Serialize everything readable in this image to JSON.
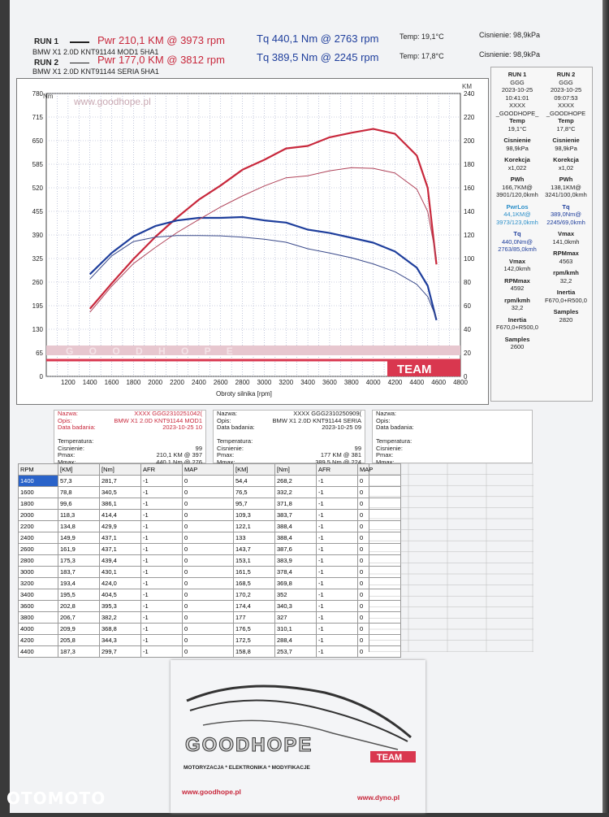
{
  "header": {
    "run1_label": "RUN 1",
    "run1_pwr": "Pwr  210,1 KM @ 3973 rpm",
    "run1_tq": "Tq 440,1 Nm @ 2763 rpm",
    "run1_temp": "Temp: 19,1°C",
    "run1_pressure": "Cisnienie: 98,9kPa",
    "run1_car": "BMW X1 2.0D  KNT91144  MOD1  5HA1",
    "run2_label": "RUN 2",
    "run2_pwr": "Pwr  177,0 KM @ 3812 rpm",
    "run2_tq": "Tq 389,5 Nm @ 2245 rpm",
    "run2_temp": "Temp: 17,8°C",
    "run2_pressure": "Cisnienie: 98,9kPa",
    "run2_car": "BMW X1 2.0D  KNT91144  SERIA  5HA1"
  },
  "chart_data": {
    "type": "line",
    "xlabel": "Obroty silnika [rpm]",
    "ylabel_left": "Nm",
    "ylabel_right": "KM",
    "watermark_url": "www.goodhope.pl",
    "brand_strip": "G O O D H O P E",
    "brand_team": "TEAM",
    "xlim": [
      1000,
      4800
    ],
    "xticks": [
      1200,
      1400,
      1600,
      1800,
      2000,
      2200,
      2400,
      2600,
      2800,
      3000,
      3200,
      3400,
      3600,
      3800,
      4000,
      4200,
      4400,
      4600,
      4800
    ],
    "ylim_left": [
      0,
      780
    ],
    "yticks_left": [
      0,
      65,
      130,
      195,
      260,
      325,
      390,
      455,
      520,
      585,
      650,
      715,
      780
    ],
    "ylim_right": [
      0,
      240
    ],
    "yticks_right": [
      0,
      20,
      40,
      60,
      80,
      100,
      120,
      140,
      160,
      180,
      200,
      220,
      240
    ],
    "series": [
      {
        "name": "RUN 1 Pwr",
        "axis": "right",
        "color": "#c8283c",
        "width": 2.2,
        "x": [
          1400,
          1600,
          1800,
          2000,
          2200,
          2400,
          2600,
          2800,
          3000,
          3200,
          3400,
          3600,
          3800,
          4000,
          4200,
          4400,
          4500,
          4580
        ],
        "y": [
          57.3,
          78.8,
          99.6,
          118.3,
          134.8,
          149.9,
          161.9,
          175.3,
          183.7,
          193.4,
          195.5,
          202.8,
          206.7,
          209.9,
          205.8,
          187.3,
          160,
          95
        ]
      },
      {
        "name": "RUN 1 Tq",
        "axis": "left",
        "color": "#1e3e9c",
        "width": 2.2,
        "x": [
          1400,
          1600,
          1800,
          2000,
          2200,
          2400,
          2600,
          2800,
          3000,
          3200,
          3400,
          3600,
          3800,
          4000,
          4200,
          4400,
          4500,
          4580
        ],
        "y": [
          281.7,
          340.5,
          386.1,
          414.4,
          429.9,
          437.1,
          437.1,
          439.4,
          430.1,
          424.0,
          404.5,
          395.3,
          382.2,
          368.8,
          344.3,
          299.7,
          250,
          155
        ]
      },
      {
        "name": "RUN 2 Pwr",
        "axis": "right",
        "color": "#b0445a",
        "width": 1,
        "x": [
          1400,
          1600,
          1800,
          2000,
          2200,
          2400,
          2600,
          2800,
          3000,
          3200,
          3400,
          3600,
          3800,
          4000,
          4200,
          4400,
          4500,
          4580
        ],
        "y": [
          54.4,
          76.5,
          95.7,
          109.3,
          122.1,
          133,
          143.7,
          153.1,
          161.5,
          168.5,
          170.2,
          174.4,
          177,
          176.5,
          172.5,
          158.8,
          140,
          100
        ]
      },
      {
        "name": "RUN 2 Tq",
        "axis": "left",
        "color": "#3a4a8a",
        "width": 1,
        "x": [
          1400,
          1600,
          1800,
          2000,
          2200,
          2400,
          2600,
          2800,
          3000,
          3200,
          3400,
          3600,
          3800,
          4000,
          4200,
          4400,
          4500,
          4580
        ],
        "y": [
          268.2,
          332.2,
          371.8,
          383.7,
          388.4,
          388.4,
          387.6,
          383.9,
          378.4,
          369.8,
          352,
          340.3,
          327,
          310.1,
          288.4,
          253.7,
          220,
          160
        ]
      }
    ]
  },
  "right_panel": {
    "col1": [
      {
        "k": "RUN 1",
        "v": "GGG"
      },
      {
        "k": "",
        "v": "2023-10-25"
      },
      {
        "k": "",
        "v": "10:41:01"
      },
      {
        "k": "",
        "v": "XXXX"
      },
      {
        "k": "",
        "v": "_GOODHOPE_"
      },
      {
        "k": "Temp",
        "v": "19,1°C"
      },
      {
        "k": "Cisnienie",
        "v": "98,9kPa"
      },
      {
        "k": "Korekcja",
        "v": "x1,022"
      },
      {
        "k": "PWh",
        "v": "166,7KM@ 3901/120,0kmh"
      },
      {
        "k": "PwrLos",
        "v": "44,1KM@ 3973/123,0kmh"
      },
      {
        "k": "Tq",
        "v": "440,0Nm@ 2763/85,0kmh"
      },
      {
        "k": "Vmax",
        "v": "142,0kmh"
      },
      {
        "k": "RPMmax",
        "v": "4592"
      },
      {
        "k": "rpm/kmh",
        "v": "32,2"
      },
      {
        "k": "Inertia",
        "v": "F670,0+R500,0"
      },
      {
        "k": "Samples",
        "v": "2600"
      }
    ],
    "col2": [
      {
        "k": "RUN 2",
        "v": "GGG"
      },
      {
        "k": "",
        "v": "2023-10-25"
      },
      {
        "k": "",
        "v": "09:07:53"
      },
      {
        "k": "",
        "v": "XXXX"
      },
      {
        "k": "",
        "v": "_GOODHOPE"
      },
      {
        "k": "Temp",
        "v": "17,8°C"
      },
      {
        "k": "Cisnienie",
        "v": "98,9kPa"
      },
      {
        "k": "Korekcja",
        "v": "x1,02"
      },
      {
        "k": "PWh",
        "v": "138,1KM@ 3241/100,0kmh"
      },
      {
        "k": "",
        "v": ""
      },
      {
        "k": "Tq",
        "v": "389,0Nm@ 2245/69,0kmh"
      },
      {
        "k": "Vmax",
        "v": "141,0kmh"
      },
      {
        "k": "RPMmax",
        "v": "4563"
      },
      {
        "k": "rpm/kmh",
        "v": "32,2"
      },
      {
        "k": "Inertia",
        "v": "F670,0+R500,0"
      },
      {
        "k": "Samples",
        "v": "2820"
      }
    ]
  },
  "info_boxes": [
    {
      "rows": [
        {
          "l": "Nazwa:",
          "v": "XXXX  GGG2310251042(",
          "red": true
        },
        {
          "l": "Opis:",
          "v": "BMW X1 2.0D KNT91144 MOD1",
          "red": true
        },
        {
          "l": "Data badania:",
          "v": "2023-10-25 10",
          "red": true
        },
        {
          "l": "",
          "v": ""
        },
        {
          "l": "Temperatura:",
          "v": "",
          "red": false
        },
        {
          "l": "Cisnienie:",
          "v": "99",
          "red": false
        },
        {
          "l": "Pmax:",
          "v": "210,1 KM @ 397",
          "red": false
        },
        {
          "l": "Mmax:",
          "v": "440,1 Nm @ 276",
          "red": false
        }
      ]
    },
    {
      "rows": [
        {
          "l": "Nazwa:",
          "v": "XXXX  GGG2310250909(",
          "red": false
        },
        {
          "l": "Opis:",
          "v": "BMW X1 2.0D KNT91144 SERIA",
          "red": false
        },
        {
          "l": "Data badania:",
          "v": "2023-10-25 09",
          "red": false
        },
        {
          "l": "",
          "v": ""
        },
        {
          "l": "Temperatura:",
          "v": "",
          "red": false
        },
        {
          "l": "Cisnienie:",
          "v": "99",
          "red": false
        },
        {
          "l": "Pmax:",
          "v": "177 KM @ 381",
          "red": false
        },
        {
          "l": "Mmax:",
          "v": "389,5 Nm @ 224",
          "red": false
        }
      ]
    },
    {
      "rows": [
        {
          "l": "Nazwa:",
          "v": ""
        },
        {
          "l": "Opis:",
          "v": ""
        },
        {
          "l": "Data badania:",
          "v": ""
        },
        {
          "l": "",
          "v": ""
        },
        {
          "l": "Temperatura:",
          "v": ""
        },
        {
          "l": "Cisnienie:",
          "v": ""
        },
        {
          "l": "Pmax:",
          "v": ""
        },
        {
          "l": "Mmax:",
          "v": ""
        }
      ]
    }
  ],
  "table": {
    "headers": [
      "RPM",
      "[KM]",
      "[Nm]",
      "AFR",
      "MAP",
      "[KM]",
      "[Nm]",
      "AFR",
      "MAP"
    ],
    "rows": [
      [
        "1400",
        "57,3",
        "281,7",
        "-1",
        "0",
        "54,4",
        "268,2",
        "-1",
        "0"
      ],
      [
        "1600",
        "78,8",
        "340,5",
        "-1",
        "0",
        "76,5",
        "332,2",
        "-1",
        "0"
      ],
      [
        "1800",
        "99,6",
        "386,1",
        "-1",
        "0",
        "95,7",
        "371,8",
        "-1",
        "0"
      ],
      [
        "2000",
        "118,3",
        "414,4",
        "-1",
        "0",
        "109,3",
        "383,7",
        "-1",
        "0"
      ],
      [
        "2200",
        "134,8",
        "429,9",
        "-1",
        "0",
        "122,1",
        "388,4",
        "-1",
        "0"
      ],
      [
        "2400",
        "149,9",
        "437,1",
        "-1",
        "0",
        "133",
        "388,4",
        "-1",
        "0"
      ],
      [
        "2600",
        "161,9",
        "437,1",
        "-1",
        "0",
        "143,7",
        "387,6",
        "-1",
        "0"
      ],
      [
        "2800",
        "175,3",
        "439,4",
        "-1",
        "0",
        "153,1",
        "383,9",
        "-1",
        "0"
      ],
      [
        "3000",
        "183,7",
        "430,1",
        "-1",
        "0",
        "161,5",
        "378,4",
        "-1",
        "0"
      ],
      [
        "3200",
        "193,4",
        "424,0",
        "-1",
        "0",
        "168,5",
        "369,8",
        "-1",
        "0"
      ],
      [
        "3400",
        "195,5",
        "404,5",
        "-1",
        "0",
        "170,2",
        "352",
        "-1",
        "0"
      ],
      [
        "3600",
        "202,8",
        "395,3",
        "-1",
        "0",
        "174,4",
        "340,3",
        "-1",
        "0"
      ],
      [
        "3800",
        "206,7",
        "382,2",
        "-1",
        "0",
        "177",
        "327",
        "-1",
        "0"
      ],
      [
        "4000",
        "209,9",
        "368,8",
        "-1",
        "0",
        "176,5",
        "310,1",
        "-1",
        "0"
      ],
      [
        "4200",
        "205,8",
        "344,3",
        "-1",
        "0",
        "172,5",
        "288,4",
        "-1",
        "0"
      ],
      [
        "4400",
        "187,3",
        "299,7",
        "-1",
        "0",
        "158,8",
        "253,7",
        "-1",
        "0"
      ]
    ]
  },
  "card": {
    "logo_text": "GOODHOPE",
    "team": "TEAM",
    "tagline": "MOTORYZACJA * ELEKTRONIKA * MODYFIKACJE",
    "url_left": "www.goodhope.pl",
    "url_right": "www.dyno.pl"
  },
  "watermark": "OTOMOTO",
  "colors": {
    "pwr": "#c8283c",
    "tq": "#1e3e9c",
    "highlight": "#2a63c9"
  }
}
